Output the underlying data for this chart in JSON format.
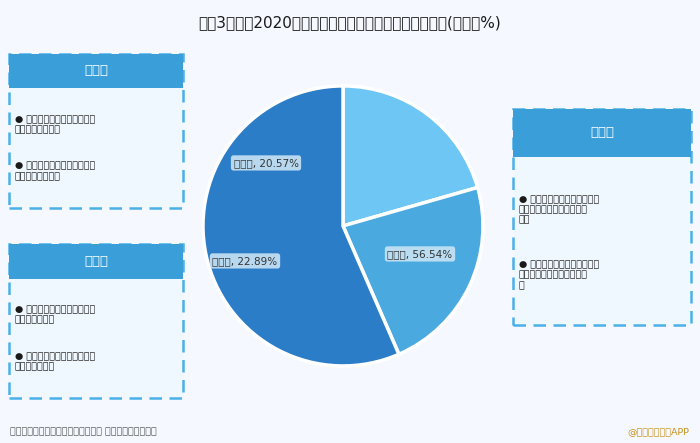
{
  "title": "图表3：截至2020年深圳市人工智能企业产业链分布情况(单位：%)",
  "title_fontsize": 11,
  "bg_color": "#f5f8ff",
  "pie_values": [
    20.57,
    22.89,
    56.54
  ],
  "pie_labels": [
    "技术层",
    "基础层",
    "应用层"
  ],
  "pie_colors": [
    "#6ec6f5",
    "#4aaae0",
    "#2c7dc8"
  ],
  "box_header_color": "#3a9fd8",
  "box_border_color": "#4ab0e8",
  "left_top_box": {
    "title": "技术层",
    "bullet1": "主要集中在计算机视觉和生\n物特征识别等领域",
    "bullet2": "如商汤科技、云天励飞、精\n锐视觉、极视角等"
  },
  "left_bottom_box": {
    "title": "基础层",
    "bullet1": "重点聚焦在大数据、物联网\n以及云计算领域",
    "bullet2": "如华为、腾讯、中兴、平安\n科技、远望谷等"
  },
  "right_box": {
    "title": "应用层",
    "bullet1": "重点布局在公共安全、智能\n制造、智能交通和智能家居\n领域",
    "bullet2": "如云天励飞、英飞拓、大族\n激光、汇川技术、轴心自控\n等"
  },
  "footer_left": "资料来源：深圳市人工智能行业协会 前瞻产业研究院整理",
  "footer_right": "@前瞻经济学人APP"
}
